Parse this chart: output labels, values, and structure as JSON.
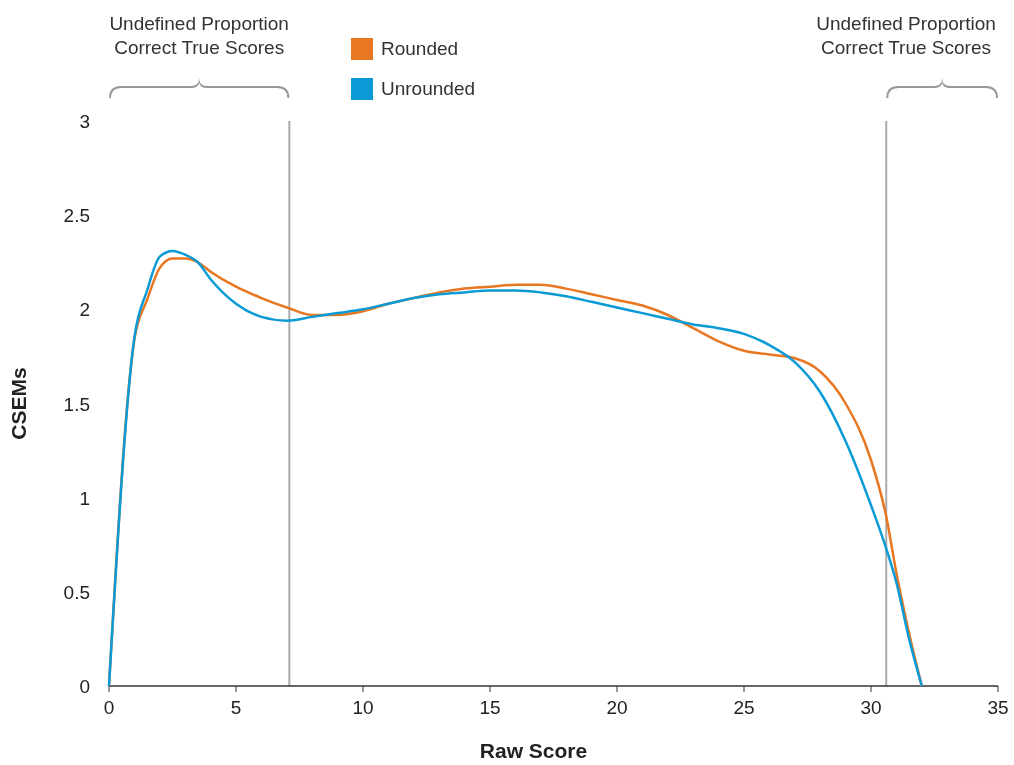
{
  "chart_data": {
    "type": "line",
    "xlabel": "Raw Score",
    "ylabel": "CSEMs",
    "xlim": [
      0,
      35
    ],
    "xticks": [
      0,
      5,
      10,
      15,
      20,
      25,
      30,
      35
    ],
    "ylim": [
      0,
      3
    ],
    "yticks": [
      0,
      0.5,
      1,
      1.5,
      2,
      2.5,
      3
    ],
    "grid": false,
    "legend": "top",
    "marker": "none",
    "line_style": "solid",
    "annotations": [
      "Undefined Proportion Correct True Scores",
      "Undefined Proportion Correct True Scores"
    ],
    "ref_lines": [
      {
        "axis": "x",
        "value": 7.1,
        "color": "#aaaaaa"
      },
      {
        "axis": "x",
        "value": 30.6,
        "color": "#aaaaaa"
      }
    ],
    "series": [
      {
        "name": "Rounded",
        "color": "#e87722",
        "x": [
          0,
          1,
          1.5,
          2,
          2.5,
          3,
          3.5,
          4,
          5,
          6,
          7,
          8,
          9,
          10,
          11,
          12,
          13,
          14,
          15,
          16,
          17,
          18,
          19,
          20,
          21,
          22,
          23,
          24,
          25,
          26,
          27,
          28,
          29,
          30,
          30.6,
          31,
          31.5,
          32
        ],
        "values": [
          0,
          1.84,
          2.05,
          2.22,
          2.27,
          2.27,
          2.25,
          2.2,
          2.12,
          2.06,
          2.01,
          1.97,
          1.97,
          1.99,
          2.03,
          2.06,
          2.09,
          2.11,
          2.12,
          2.13,
          2.13,
          2.11,
          2.08,
          2.05,
          2.02,
          1.97,
          1.9,
          1.83,
          1.78,
          1.76,
          1.74,
          1.67,
          1.5,
          1.2,
          0.9,
          0.6,
          0.28,
          0
        ]
      },
      {
        "name": "Unrounded",
        "color": "#0a9ad6",
        "x": [
          0,
          1,
          1.5,
          2,
          2.5,
          3,
          3.5,
          4,
          5,
          6,
          7,
          8,
          9,
          10,
          11,
          12,
          13,
          14,
          15,
          16,
          17,
          18,
          19,
          20,
          21,
          22,
          23,
          24,
          25,
          26,
          27,
          28,
          29,
          30,
          30.6,
          31,
          31.5,
          32
        ],
        "values": [
          0,
          1.85,
          2.1,
          2.28,
          2.31,
          2.29,
          2.25,
          2.16,
          2.03,
          1.96,
          1.94,
          1.96,
          1.98,
          2.0,
          2.03,
          2.06,
          2.08,
          2.09,
          2.1,
          2.1,
          2.09,
          2.07,
          2.04,
          2.01,
          1.98,
          1.95,
          1.92,
          1.9,
          1.87,
          1.81,
          1.72,
          1.56,
          1.3,
          0.96,
          0.73,
          0.55,
          0.25,
          0
        ]
      }
    ]
  }
}
